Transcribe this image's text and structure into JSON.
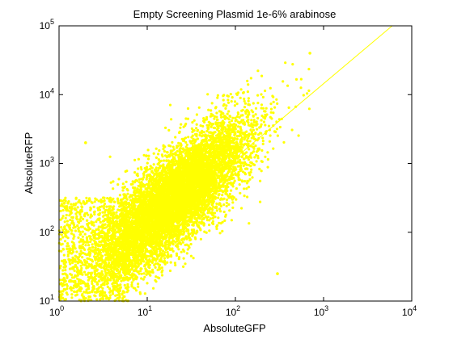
{
  "chart_data": {
    "type": "scatter",
    "title": "Empty Screening Plasmid 1e-6% arabinose",
    "xlabel": "AbsoluteGFP",
    "ylabel": "AbsoluteRFP",
    "xscale": "log",
    "yscale": "log",
    "xlim": [
      1,
      10000
    ],
    "ylim": [
      10,
      100000
    ],
    "x_ticks": [
      {
        "value": 1,
        "base": "10",
        "exp": "0"
      },
      {
        "value": 10,
        "base": "10",
        "exp": "1"
      },
      {
        "value": 100,
        "base": "10",
        "exp": "2"
      },
      {
        "value": 1000,
        "base": "10",
        "exp": "3"
      },
      {
        "value": 10000,
        "base": "10",
        "exp": "4"
      }
    ],
    "y_ticks": [
      {
        "value": 10,
        "base": "10",
        "exp": "1"
      },
      {
        "value": 100,
        "base": "10",
        "exp": "2"
      },
      {
        "value": 1000,
        "base": "10",
        "exp": "3"
      },
      {
        "value": 10000,
        "base": "10",
        "exp": "4"
      },
      {
        "value": 100000,
        "base": "10",
        "exp": "5"
      }
    ],
    "grid": false,
    "legend": "none",
    "color": "#ffff00",
    "reference_line": {
      "x": [
        10,
        6000
      ],
      "y": [
        100,
        100000
      ],
      "color": "#ffff00"
    },
    "point_cloud": {
      "count": 9000,
      "center": {
        "x": 20,
        "y": 300
      },
      "extent": {
        "x": [
          1,
          800
        ],
        "y": [
          10,
          40000
        ]
      },
      "correlation": "positive"
    },
    "outliers": [
      {
        "x": 2.0,
        "y": 2000
      },
      {
        "x": 700,
        "y": 40000
      },
      {
        "x": 300,
        "y": 25
      },
      {
        "x": 1.1,
        "y": 11
      }
    ]
  }
}
